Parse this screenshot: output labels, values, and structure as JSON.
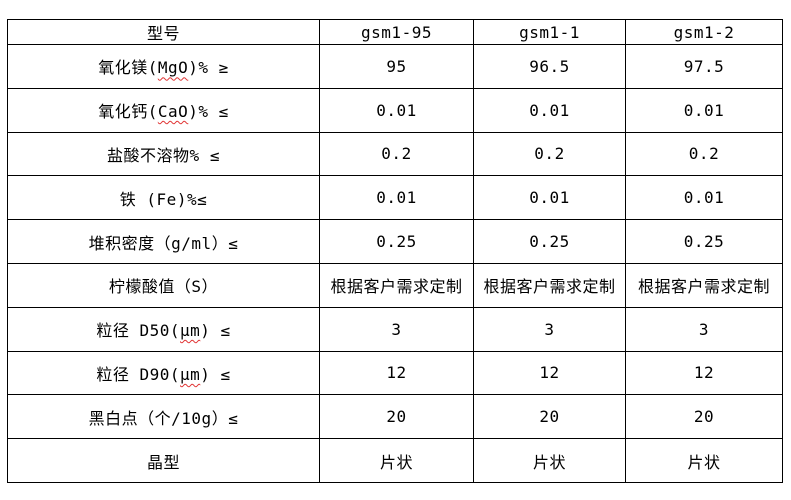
{
  "colors": {
    "border": "#000000",
    "text": "#000000",
    "background": "#ffffff",
    "spellcheck_underline": "#e03232"
  },
  "table": {
    "header": {
      "row_label": "型号",
      "columns": [
        "gsm1-95",
        "gsm1-1",
        "gsm1-2"
      ]
    },
    "rows": [
      {
        "label": [
          {
            "t": "氧化镁("
          },
          {
            "t": "MgO",
            "squiggle": true
          },
          {
            "t": ")% ≥"
          }
        ],
        "values": [
          "95",
          "96.5",
          "97.5"
        ]
      },
      {
        "label": [
          {
            "t": "氧化钙("
          },
          {
            "t": "CaO",
            "squiggle": true
          },
          {
            "t": ")% ≤"
          }
        ],
        "values": [
          "0.01",
          "0.01",
          "0.01"
        ]
      },
      {
        "label": [
          {
            "t": "盐酸不溶物% ≤"
          }
        ],
        "values": [
          "0.2",
          "0.2",
          "0.2"
        ]
      },
      {
        "label": [
          {
            "t": "铁 (Fe)%≤"
          }
        ],
        "values": [
          "0.01",
          "0.01",
          "0.01"
        ]
      },
      {
        "label": [
          {
            "t": "堆积密度（g/ml）≤"
          }
        ],
        "values": [
          "0.25",
          "0.25",
          "0.25"
        ]
      },
      {
        "label": [
          {
            "t": "柠檬酸值（S）"
          }
        ],
        "values": [
          "根据客户需求定制",
          "根据客户需求定制",
          "根据客户需求定制"
        ]
      },
      {
        "label": [
          {
            "t": "粒径 D50("
          },
          {
            "t": "μm",
            "squiggle": true
          },
          {
            "t": ") ≤"
          }
        ],
        "values": [
          "3",
          "3",
          "3"
        ]
      },
      {
        "label": [
          {
            "t": "粒径 D90("
          },
          {
            "t": "μm",
            "squiggle": true
          },
          {
            "t": ") ≤"
          }
        ],
        "values": [
          "12",
          "12",
          "12"
        ]
      },
      {
        "label": [
          {
            "t": "黑白点（个/10g）≤"
          }
        ],
        "values": [
          "20",
          "20",
          "20"
        ]
      },
      {
        "label": [
          {
            "t": "晶型"
          }
        ],
        "values": [
          "片状",
          "片状",
          "片状"
        ]
      }
    ]
  }
}
